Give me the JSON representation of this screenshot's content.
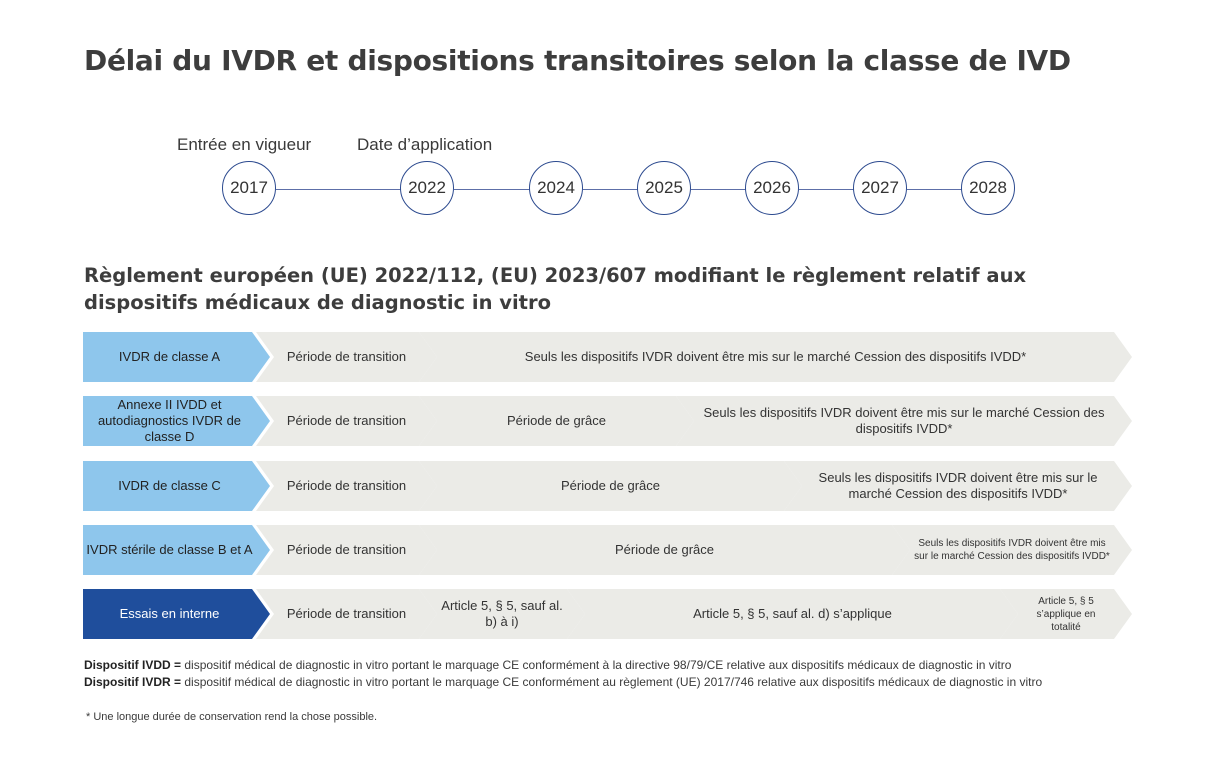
{
  "title": "Délai du IVDR et dispositions transitoires selon la classe de IVD",
  "timeline": {
    "labels": [
      "Entrée en vigueur",
      "Date d’application"
    ],
    "years": [
      "2017",
      "2022",
      "2024",
      "2025",
      "2026",
      "2027",
      "2028"
    ]
  },
  "subtitle": "Règlement européen (UE) 2022/112, (EU) 2023/607 modifiant le règlement relatif aux dispositifs médicaux de diagnostic in vitro",
  "rows": [
    {
      "label": "IVDR de classe A",
      "segments": [
        "Période de transition",
        "Seuls les dispositifs IVDR doivent être mis sur le marché Cession des dispositifs IVDD*"
      ]
    },
    {
      "label": "Annexe II IVDD et autodiagnostics IVDR de classe D",
      "segments": [
        "Période de transition",
        "Période de grâce",
        "Seuls les dispositifs IVDR doivent être mis sur le marché Cession des dispositifs IVDD*"
      ]
    },
    {
      "label": "IVDR de classe C",
      "segments": [
        "Période de transition",
        "Période de grâce",
        "Seuls les dispositifs IVDR doivent être mis sur le marché Cession des dispositifs IVDD*"
      ]
    },
    {
      "label": "IVDR stérile de classe B et A",
      "segments": [
        "Période de transition",
        "Période de grâce",
        "Seuls les dispositifs IVDR doivent être mis sur le marché Cession des dispositifs IVDD*"
      ]
    },
    {
      "label": "Essais en interne",
      "segments": [
        "Période de transition",
        "Article 5, § 5, sauf al. b) à i)",
        "Article 5, § 5, sauf al. d) s’applique",
        "Article 5, § 5 s’applique en totalité"
      ]
    }
  ],
  "legend": [
    {
      "term": "Dispositif IVDD =",
      "text": " dispositif médical de diagnostic in vitro portant le marquage CE conformément à la directive 98/79/CE relative aux dispositifs médicaux de diagnostic in vitro"
    },
    {
      "term": "Dispositif IVDR =",
      "text": " dispositif médical de diagnostic in vitro portant le marquage CE conformément au règlement (UE) 2017/746 relative aux dispositifs médicaux de diagnostic in vitro"
    }
  ],
  "footnote": "* Une longue durée de conservation rend la chose possible.",
  "colors": {
    "label_light": "#8ec6ec",
    "label_dark": "#1f4e9c",
    "segment_grey": "#ebebe7",
    "timeline_line": "#5d6fa8",
    "timeline_circle_border": "#2c4a8f"
  }
}
